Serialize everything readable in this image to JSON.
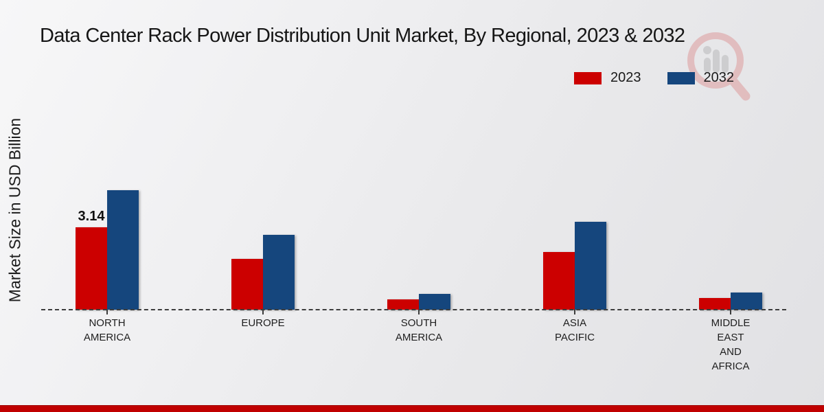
{
  "title": "Data Center Rack Power Distribution Unit Market, By Regional, 2023 & 2032",
  "ylabel": "Market Size in USD Billion",
  "legend": {
    "items": [
      {
        "label": "2023",
        "color": "#cc0000"
      },
      {
        "label": "2032",
        "color": "#15467d"
      }
    ]
  },
  "colors": {
    "series_2023": "#cc0000",
    "series_2032": "#15467d",
    "footer": "#c00000",
    "axis": "#3c3c3c",
    "watermark_red": "#d76b6b",
    "watermark_grey": "#9b9b9b"
  },
  "chart_data": {
    "type": "bar",
    "categories": [
      {
        "name": "North America",
        "lines": [
          "NORTH",
          "AMERICA"
        ]
      },
      {
        "name": "Europe",
        "lines": [
          "EUROPE"
        ]
      },
      {
        "name": "South America",
        "lines": [
          "SOUTH",
          "AMERICA"
        ]
      },
      {
        "name": "Asia Pacific",
        "lines": [
          "ASIA",
          "PACIFIC"
        ]
      },
      {
        "name": "Middle East and Africa",
        "lines": [
          "MIDDLE",
          "EAST",
          "AND",
          "AFRICA"
        ]
      }
    ],
    "series": [
      {
        "name": "2023",
        "color": "#cc0000",
        "values": [
          3.14,
          1.95,
          0.4,
          2.2,
          0.45
        ]
      },
      {
        "name": "2032",
        "color": "#15467d",
        "values": [
          4.55,
          2.85,
          0.6,
          3.35,
          0.65
        ]
      }
    ],
    "annotations": [
      {
        "text": "3.14",
        "category_index": 0,
        "series_index": 0
      }
    ],
    "xlabel": "",
    "ylabel": "Market Size in USD Billion",
    "ylim": [
      0,
      5
    ],
    "grid": false,
    "legend_position": "top-right",
    "baseline_style": "dashed"
  }
}
